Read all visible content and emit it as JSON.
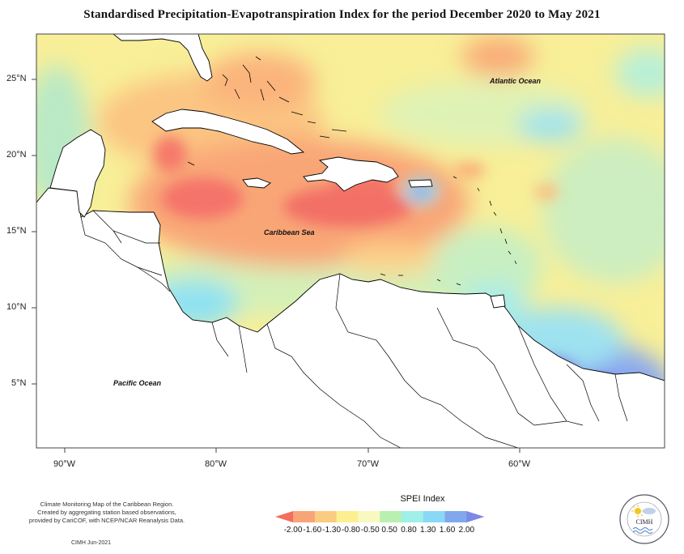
{
  "title": "Standardised Precipitation-Evapotranspiration Index for the period December 2020 to May 2021",
  "map": {
    "lat_ticks": [
      "25°N",
      "20°N",
      "15°N",
      "10°N",
      "5°N"
    ],
    "lon_ticks": [
      "90°W",
      "80°W",
      "70°W",
      "60°W"
    ],
    "region_labels": {
      "atlantic": "Atlantic Ocean",
      "caribbean": "Caribbean Sea",
      "pacific": "Pacific Ocean"
    }
  },
  "legend": {
    "title": "SPEI Index",
    "ticks": [
      "-2.00",
      "-1.60",
      "-1.30",
      "-0.80",
      "-0.50",
      "0.50",
      "0.80",
      "1.30",
      "1.60",
      "2.00"
    ],
    "colors": [
      "#f46d5d",
      "#f8a378",
      "#fbcb80",
      "#fcef90",
      "#f7f9c0",
      "#b8f0b0",
      "#9ef0e8",
      "#8ad8f8",
      "#80a8ec",
      "#7c88e6"
    ]
  },
  "footer": {
    "lines": [
      "Climate Monitoring Map of the Caribbean Region.",
      "Created by aggregating station based observations,",
      "provided by CariCOF, with NCEP/NCAR Reanalysis Data."
    ],
    "date": "CIMH Jun-2021",
    "logo_text": "CIMH"
  }
}
